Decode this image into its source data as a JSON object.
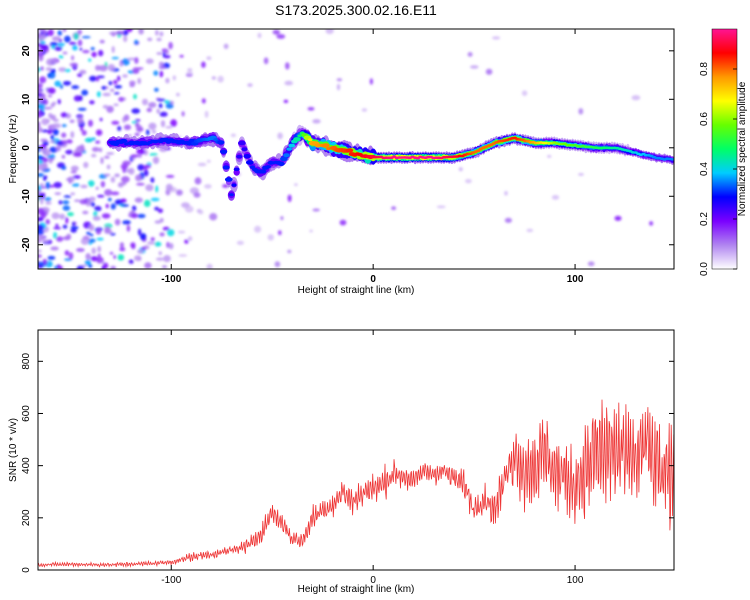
{
  "chart_data": [
    {
      "type": "heatmap",
      "title": "S173.2025.300.02.16.E11",
      "xlabel": "Height of straight line (km)",
      "ylabel": "Frequency (Hz)",
      "xlim": [
        -166,
        149
      ],
      "ylim": [
        -25,
        24.5
      ],
      "xticks": [
        -100,
        0,
        100
      ],
      "yticks": [
        -20,
        -10,
        0,
        10,
        20
      ],
      "colorbar": {
        "label": "Normalized spectral amplitude",
        "range": [
          0,
          0.96
        ],
        "ticks": [
          "0.0",
          "0.2",
          "0.4",
          "0.6",
          "0.8"
        ],
        "colors": [
          "#ffffff",
          "#b084f0",
          "#7a00ff",
          "#0000ff",
          "#00ccff",
          "#00ff66",
          "#66ff00",
          "#ffff00",
          "#ff9900",
          "#ff0000",
          "#ff1493"
        ]
      },
      "ridge": {
        "x": [
          -130,
          -115,
          -100,
          -90,
          -80,
          -75,
          -70,
          -65,
          -60,
          -55,
          -50,
          -45,
          -40,
          -35,
          -30,
          -20,
          -10,
          0,
          10,
          20,
          30,
          40,
          50,
          60,
          70,
          80,
          90,
          100,
          110,
          120,
          130,
          140,
          149
        ],
        "freq": [
          1,
          1,
          1.5,
          1,
          2,
          1,
          -10,
          1,
          -4,
          -5,
          -3,
          -3,
          1,
          3,
          1,
          0,
          -1,
          -2,
          -2,
          -2,
          -2,
          -2,
          -1,
          1,
          2,
          1,
          1,
          0.5,
          0,
          0,
          -1,
          -2,
          -2.5
        ],
        "amplitude": [
          0.3,
          0.3,
          0.3,
          0.3,
          0.35,
          0.3,
          0.3,
          0.25,
          0.3,
          0.3,
          0.3,
          0.3,
          0.4,
          0.5,
          0.75,
          0.8,
          0.85,
          0.9,
          0.95,
          0.95,
          0.95,
          0.9,
          0.8,
          0.8,
          0.85,
          0.75,
          0.6,
          0.55,
          0.5,
          0.45,
          0.4,
          0.35,
          0.35
        ]
      }
    },
    {
      "type": "line",
      "xlabel": "Height of straight line (km)",
      "ylabel": "SNR (10 * v/v)",
      "xlim": [
        -166,
        149
      ],
      "ylim": [
        0,
        920
      ],
      "xticks": [
        -100,
        0,
        100
      ],
      "yticks": [
        0,
        200,
        400,
        600,
        800
      ],
      "series": [
        {
          "name": "SNR",
          "color": "#ee3333",
          "x": [
            -166,
            -150,
            -130,
            -110,
            -100,
            -90,
            -80,
            -70,
            -60,
            -55,
            -50,
            -45,
            -40,
            -35,
            -30,
            -25,
            -20,
            -15,
            -10,
            -5,
            0,
            5,
            10,
            15,
            20,
            25,
            30,
            35,
            40,
            45,
            50,
            55,
            60,
            65,
            70,
            75,
            80,
            85,
            90,
            95,
            100,
            105,
            110,
            115,
            120,
            125,
            130,
            135,
            140,
            145,
            149
          ],
          "mean": [
            20,
            22,
            20,
            25,
            30,
            50,
            60,
            75,
            100,
            150,
            220,
            180,
            120,
            110,
            200,
            230,
            250,
            300,
            260,
            300,
            310,
            330,
            370,
            360,
            340,
            380,
            370,
            380,
            350,
            330,
            230,
            280,
            230,
            340,
            450,
            380,
            400,
            450,
            380,
            350,
            330,
            380,
            450,
            450,
            460,
            420,
            430,
            480,
            400,
            350,
            330
          ],
          "spread": [
            15,
            15,
            15,
            15,
            20,
            30,
            30,
            40,
            60,
            80,
            100,
            90,
            70,
            60,
            80,
            80,
            100,
            100,
            110,
            110,
            110,
            110,
            110,
            100,
            80,
            80,
            80,
            80,
            100,
            100,
            90,
            120,
            140,
            200,
            250,
            300,
            300,
            300,
            300,
            300,
            300,
            330,
            430,
            450,
            450,
            400,
            400,
            400,
            400,
            400,
            400
          ]
        }
      ]
    }
  ]
}
